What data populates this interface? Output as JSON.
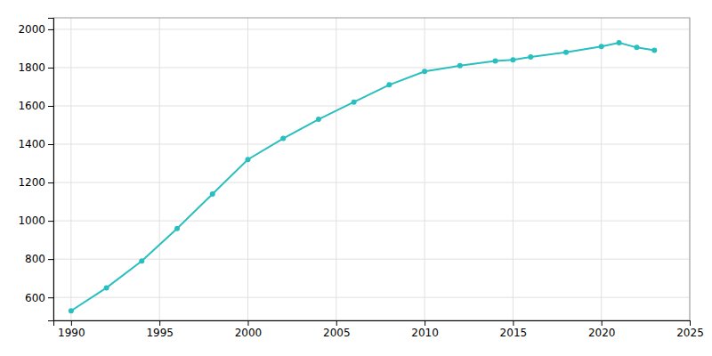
{
  "chart_data": {
    "type": "line",
    "x": [
      1990,
      1992,
      1994,
      1996,
      1998,
      2000,
      2002,
      2004,
      2006,
      2008,
      2010,
      2012,
      2014,
      2015,
      2016,
      2018,
      2020,
      2021,
      2022,
      2023
    ],
    "values": [
      530,
      650,
      790,
      960,
      1140,
      1320,
      1430,
      1530,
      1620,
      1710,
      1780,
      1810,
      1835,
      1840,
      1855,
      1880,
      1910,
      1930,
      1905,
      1890
    ],
    "color": "#2abfbf",
    "marker": "o",
    "xlim": [
      1989,
      2025
    ],
    "ylim": [
      480,
      2060
    ],
    "xticks": [
      1990,
      1995,
      2000,
      2005,
      2010,
      2015,
      2020,
      2025
    ],
    "yticks": [
      600,
      800,
      1000,
      1200,
      1400,
      1600,
      1800,
      2000
    ],
    "grid": true
  }
}
